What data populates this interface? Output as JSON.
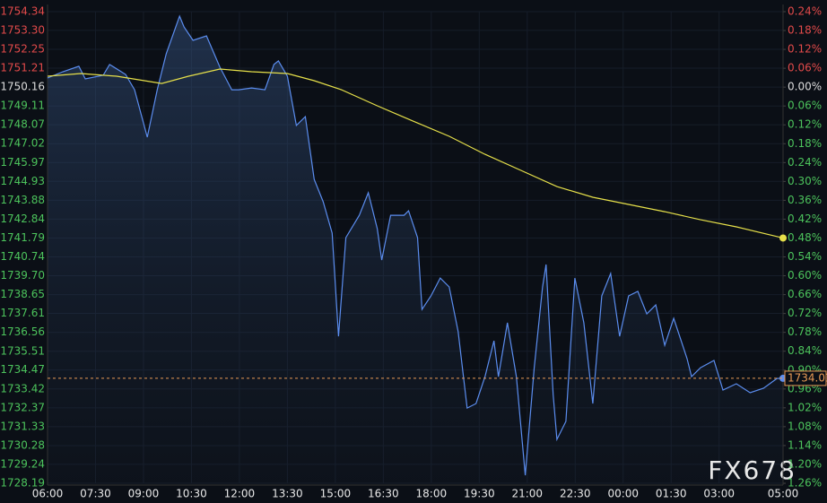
{
  "chart_data": {
    "type": "line",
    "watermark": "FX678",
    "xlim": [
      0,
      23
    ],
    "xticks": [
      {
        "value": 0,
        "label": "06:00"
      },
      {
        "value": 1.5,
        "label": "07:30"
      },
      {
        "value": 3,
        "label": "09:00"
      },
      {
        "value": 4.5,
        "label": "10:30"
      },
      {
        "value": 6,
        "label": "12:00"
      },
      {
        "value": 7.5,
        "label": "13:30"
      },
      {
        "value": 9,
        "label": "15:00"
      },
      {
        "value": 10.5,
        "label": "16:30"
      },
      {
        "value": 12,
        "label": "18:00"
      },
      {
        "value": 13.5,
        "label": "19:30"
      },
      {
        "value": 15,
        "label": "21:00"
      },
      {
        "value": 16.5,
        "label": "22:30"
      },
      {
        "value": 18,
        "label": "00:00"
      },
      {
        "value": 19.5,
        "label": "01:30"
      },
      {
        "value": 21,
        "label": "03:00"
      },
      {
        "value": 23,
        "label": "05:00"
      }
    ],
    "ylim": [
      1728.19,
      1754.34
    ],
    "yticks": [
      1754.34,
      {
        "value": 1753.3,
        "label": "1753.30"
      },
      1752.25,
      1751.21,
      1750.16,
      1749.11,
      1748.07,
      1747.02,
      1745.97,
      1744.93,
      1743.88,
      1742.84,
      1741.79,
      1740.74,
      {
        "value": 1739.7,
        "label": "1739.70"
      },
      1738.65,
      1737.61,
      1736.56,
      1735.51,
      1734.47,
      1733.42,
      1732.37,
      1731.33,
      1730.28,
      1729.24,
      1728.19
    ],
    "y2lim": [
      -1.26,
      0.24
    ],
    "y2ticks": [
      {
        "value": 0.24,
        "label": "0.24%"
      },
      {
        "value": 0.18,
        "label": "0.18%"
      },
      {
        "value": 0.12,
        "label": "0.12%"
      },
      {
        "value": 0.06,
        "label": "0.06%"
      },
      {
        "value": 0,
        "label": "0.00%"
      },
      {
        "value": -0.06,
        "label": "0.06%"
      },
      {
        "value": -0.12,
        "label": "0.12%"
      },
      {
        "value": -0.18,
        "label": "0.18%"
      },
      {
        "value": -0.24,
        "label": "0.24%"
      },
      {
        "value": -0.3,
        "label": "0.30%"
      },
      {
        "value": -0.36,
        "label": "0.36%"
      },
      {
        "value": -0.42,
        "label": "0.42%"
      },
      {
        "value": -0.48,
        "label": "0.48%"
      },
      {
        "value": -0.54,
        "label": "0.54%"
      },
      {
        "value": -0.6,
        "label": "0.60%"
      },
      {
        "value": -0.66,
        "label": "0.66%"
      },
      {
        "value": -0.72,
        "label": "0.72%"
      },
      {
        "value": -0.78,
        "label": "0.78%"
      },
      {
        "value": -0.84,
        "label": "0.84%"
      },
      {
        "value": -0.9,
        "label": "0.90%"
      },
      {
        "value": -0.96,
        "label": "0.96%"
      },
      {
        "value": -1.02,
        "label": "1.02%"
      },
      {
        "value": -1.08,
        "label": "1.08%"
      },
      {
        "value": -1.14,
        "label": "1.14%"
      },
      {
        "value": -1.2,
        "label": "1.20%"
      },
      {
        "value": -1.26,
        "label": "1.26%"
      }
    ],
    "up_color": "#e24a4a",
    "down_color": "#4cc35c",
    "flat_color": "#dddddd",
    "grid": true,
    "series": [
      {
        "color": "#5b8def",
        "area": true,
        "x": [
          0,
          0.48,
          0.98,
          1.18,
          1.74,
          1.94,
          2.44,
          2.72,
          3.12,
          3.43,
          3.71,
          4.13,
          4.27,
          4.55,
          4.97,
          5.39,
          5.76,
          5.98,
          6.38,
          6.8,
          7.08,
          7.22,
          7.5,
          7.78,
          8.06,
          8.34,
          8.62,
          8.9,
          9.1,
          9.33,
          9.75,
          10.03,
          10.31,
          10.45,
          10.73,
          11.15,
          11.29,
          11.57,
          11.71,
          11.99,
          12.28,
          12.56,
          12.84,
          13.12,
          13.4,
          13.68,
          13.96,
          14.1,
          14.38,
          14.66,
          14.94,
          15.22,
          15.48,
          15.59,
          15.81,
          15.93,
          16.21,
          16.49,
          16.77,
          17.05,
          17.33,
          17.61,
          17.89,
          18.17,
          18.46,
          18.74,
          19.02,
          19.3,
          19.58,
          20,
          20.14,
          20.42,
          20.84,
          21.12,
          21.54,
          21.97,
          22.39,
          22.81,
          23
        ],
        "values": [
          1750.66,
          1751.01,
          1751.31,
          1750.61,
          1750.81,
          1751.41,
          1750.86,
          1750.01,
          1747.38,
          1750.01,
          1752.0,
          1754.09,
          1753.49,
          1752.75,
          1753.0,
          1751.26,
          1750.01,
          1750.01,
          1750.11,
          1750.01,
          1751.41,
          1751.61,
          1750.76,
          1748.03,
          1748.52,
          1745.04,
          1743.8,
          1742.06,
          1736.34,
          1741.81,
          1743.05,
          1744.3,
          1742.31,
          1740.57,
          1743.05,
          1743.05,
          1743.3,
          1741.81,
          1737.83,
          1738.58,
          1739.57,
          1739.08,
          1736.59,
          1732.36,
          1732.61,
          1734.1,
          1736.09,
          1734.1,
          1737.09,
          1734.1,
          1728.63,
          1734.6,
          1739.08,
          1740.32,
          1733.11,
          1730.62,
          1731.62,
          1739.57,
          1737.09,
          1732.61,
          1738.58,
          1739.82,
          1736.34,
          1738.58,
          1738.83,
          1737.58,
          1738.08,
          1735.84,
          1737.34,
          1735.1,
          1734.1,
          1734.6,
          1735.0,
          1733.36,
          1733.71,
          1733.21,
          1733.46,
          1734.0,
          1734.01
        ]
      },
      {
        "color": "#e6e04a",
        "area": false,
        "x": [
          0,
          1.04,
          2.16,
          3.57,
          4.41,
          5.39,
          6.38,
          7.5,
          8.34,
          9.19,
          10.31,
          11.43,
          12.56,
          13.68,
          14.8,
          15.93,
          17.05,
          18.17,
          19.3,
          20.42,
          21.54,
          23
        ],
        "values": [
          1750.76,
          1750.91,
          1750.76,
          1750.36,
          1750.76,
          1751.16,
          1751.01,
          1750.91,
          1750.51,
          1750.01,
          1749.12,
          1748.27,
          1747.43,
          1746.43,
          1745.54,
          1744.64,
          1744.05,
          1743.65,
          1743.25,
          1742.8,
          1742.41,
          1741.79
        ]
      }
    ],
    "reference_line": {
      "value": 1734.01,
      "color": "#e89a55"
    }
  }
}
